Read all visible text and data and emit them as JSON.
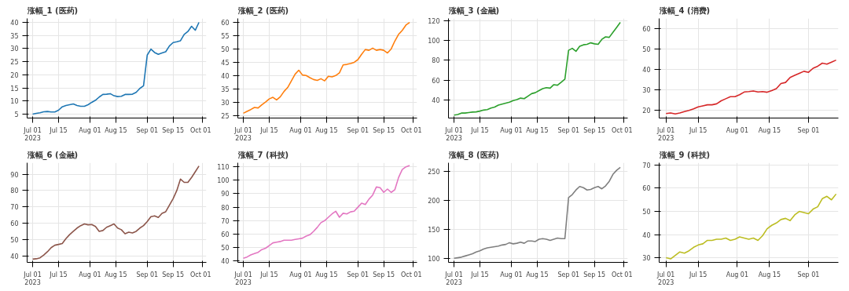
{
  "chart_data": [
    {
      "type": "line",
      "title": "涨幅_1 (医药)",
      "color": "#1f77b4",
      "grid": true,
      "x": [
        "2023-07-01",
        "2023-07-03",
        "2023-07-05",
        "2023-07-07",
        "2023-07-09",
        "2023-07-11",
        "2023-07-13",
        "2023-07-15",
        "2023-07-17",
        "2023-07-19",
        "2023-07-21",
        "2023-07-23",
        "2023-07-25",
        "2023-07-27",
        "2023-07-29",
        "2023-07-31",
        "2023-08-02",
        "2023-08-04",
        "2023-08-06",
        "2023-08-08",
        "2023-08-10",
        "2023-08-12",
        "2023-08-14",
        "2023-08-16",
        "2023-08-18",
        "2023-08-20",
        "2023-08-22",
        "2023-08-24",
        "2023-08-26",
        "2023-08-28",
        "2023-08-30",
        "2023-09-01",
        "2023-09-03",
        "2023-09-05",
        "2023-09-07",
        "2023-09-09",
        "2023-09-11",
        "2023-09-13",
        "2023-09-15",
        "2023-09-17",
        "2023-09-19",
        "2023-09-21",
        "2023-09-23",
        "2023-09-25",
        "2023-09-27",
        "2023-09-29"
      ],
      "values": [
        5.0,
        5.3,
        5.5,
        5.9,
        6.0,
        5.8,
        5.8,
        6.5,
        7.8,
        8.3,
        8.6,
        8.9,
        8.3,
        8.0,
        8.0,
        8.6,
        9.5,
        10.3,
        11.5,
        12.5,
        12.6,
        12.8,
        12.0,
        11.7,
        11.8,
        12.5,
        12.5,
        12.6,
        13.3,
        14.8,
        15.8,
        27.5,
        29.8,
        28.5,
        27.8,
        28.3,
        28.8,
        31,
        32.3,
        32.6,
        33,
        35.4,
        36.5,
        38.5,
        37,
        40
      ],
      "xlim": [
        "2023-06-28",
        "2023-10-03"
      ],
      "ylim": [
        3.5,
        41.5
      ],
      "yticks": [
        5,
        10,
        15,
        20,
        25,
        30,
        35,
        40
      ],
      "xticks": [
        {
          "value": "2023-07-01",
          "label": "Jul 01\n2023"
        },
        {
          "value": "2023-07-15",
          "label": "Jul 15"
        },
        {
          "value": "2023-08-01",
          "label": "Aug 01"
        },
        {
          "value": "2023-08-15",
          "label": "Aug 15"
        },
        {
          "value": "2023-09-01",
          "label": "Sep 01"
        },
        {
          "value": "2023-09-15",
          "label": "Sep 15"
        },
        {
          "value": "2023-10-01",
          "label": "Oct 01"
        }
      ]
    },
    {
      "type": "line",
      "title": "涨幅_2 (医药)",
      "color": "#ff7f0e",
      "grid": true,
      "x": [
        "2023-07-01",
        "2023-07-03",
        "2023-07-05",
        "2023-07-07",
        "2023-07-09",
        "2023-07-11",
        "2023-07-13",
        "2023-07-15",
        "2023-07-17",
        "2023-07-19",
        "2023-07-21",
        "2023-07-23",
        "2023-07-25",
        "2023-07-27",
        "2023-07-29",
        "2023-07-31",
        "2023-08-02",
        "2023-08-04",
        "2023-08-06",
        "2023-08-08",
        "2023-08-10",
        "2023-08-12",
        "2023-08-14",
        "2023-08-16",
        "2023-08-18",
        "2023-08-20",
        "2023-08-22",
        "2023-08-24",
        "2023-08-26",
        "2023-08-28",
        "2023-08-30",
        "2023-09-01",
        "2023-09-03",
        "2023-09-05",
        "2023-09-07",
        "2023-09-09",
        "2023-09-11",
        "2023-09-13",
        "2023-09-15",
        "2023-09-17",
        "2023-09-19",
        "2023-09-21",
        "2023-09-23",
        "2023-09-25",
        "2023-09-27",
        "2023-09-29"
      ],
      "values": [
        25.8,
        26.5,
        27.2,
        28,
        27.8,
        29,
        30,
        31.2,
        31.8,
        30.8,
        32,
        34,
        35.5,
        38,
        40.5,
        42,
        40.2,
        40,
        39.2,
        38.5,
        38.2,
        38.8,
        38,
        39.7,
        39.5,
        40,
        41,
        44,
        44.2,
        44.5,
        45,
        46,
        48,
        49.8,
        49.5,
        50.3,
        49.5,
        49.8,
        49.5,
        48.5,
        50,
        53,
        55.5,
        57,
        59,
        60
      ],
      "xlim": [
        "2023-06-28",
        "2023-10-03"
      ],
      "ylim": [
        24,
        61.5
      ],
      "yticks": [
        25,
        30,
        35,
        40,
        45,
        50,
        55,
        60
      ],
      "xticks": [
        {
          "value": "2023-07-01",
          "label": "Jul 01\n2023"
        },
        {
          "value": "2023-07-15",
          "label": "Jul 15"
        },
        {
          "value": "2023-08-01",
          "label": "Aug 01"
        },
        {
          "value": "2023-08-15",
          "label": "Aug 15"
        },
        {
          "value": "2023-09-01",
          "label": "Sep 01"
        },
        {
          "value": "2023-09-15",
          "label": "Sep 15"
        },
        {
          "value": "2023-10-01",
          "label": "Oct 01"
        }
      ]
    },
    {
      "type": "line",
      "title": "涨幅_3 (金融)",
      "color": "#2ca02c",
      "grid": true,
      "x": [
        "2023-07-01",
        "2023-07-03",
        "2023-07-05",
        "2023-07-07",
        "2023-07-09",
        "2023-07-11",
        "2023-07-13",
        "2023-07-15",
        "2023-07-17",
        "2023-07-19",
        "2023-07-21",
        "2023-07-23",
        "2023-07-25",
        "2023-07-27",
        "2023-07-29",
        "2023-07-31",
        "2023-08-02",
        "2023-08-04",
        "2023-08-06",
        "2023-08-08",
        "2023-08-10",
        "2023-08-12",
        "2023-08-14",
        "2023-08-16",
        "2023-08-18",
        "2023-08-20",
        "2023-08-22",
        "2023-08-24",
        "2023-08-26",
        "2023-08-28",
        "2023-08-30",
        "2023-09-01",
        "2023-09-03",
        "2023-09-05",
        "2023-09-07",
        "2023-09-09",
        "2023-09-11",
        "2023-09-13",
        "2023-09-15",
        "2023-09-17",
        "2023-09-19",
        "2023-09-21",
        "2023-09-23",
        "2023-09-25",
        "2023-09-27",
        "2023-09-29"
      ],
      "values": [
        25,
        25.5,
        27,
        27,
        27.5,
        28,
        28.2,
        29,
        30,
        30.5,
        32,
        33,
        35,
        36,
        37,
        38,
        39.5,
        40.5,
        42,
        41.5,
        44,
        46.5,
        47.5,
        49.5,
        51.5,
        52.5,
        52,
        55.5,
        55,
        58,
        61,
        90,
        92,
        89,
        94,
        95.5,
        96,
        97.5,
        96.5,
        96,
        101,
        103.5,
        103,
        108,
        113,
        118
      ],
      "xlim": [
        "2023-06-28",
        "2023-10-03"
      ],
      "ylim": [
        22,
        122
      ],
      "yticks": [
        40,
        60,
        80,
        100,
        120
      ],
      "xticks": [
        {
          "value": "2023-07-01",
          "label": "Jul 01\n2023"
        },
        {
          "value": "2023-07-15",
          "label": "Jul 15"
        },
        {
          "value": "2023-08-01",
          "label": "Aug 01"
        },
        {
          "value": "2023-08-15",
          "label": "Aug 15"
        },
        {
          "value": "2023-09-01",
          "label": "Sep 01"
        },
        {
          "value": "2023-09-15",
          "label": "Sep 15"
        },
        {
          "value": "2023-10-01",
          "label": "Oct 01"
        }
      ]
    },
    {
      "type": "line",
      "title": "涨幅_4 (消费)",
      "color": "#d62728",
      "grid": true,
      "x": [
        "2023-07-01",
        "2023-07-03",
        "2023-07-05",
        "2023-07-07",
        "2023-07-09",
        "2023-07-11",
        "2023-07-13",
        "2023-07-15",
        "2023-07-17",
        "2023-07-19",
        "2023-07-21",
        "2023-07-23",
        "2023-07-25",
        "2023-07-27",
        "2023-07-29",
        "2023-07-31",
        "2023-08-02",
        "2023-08-04",
        "2023-08-06",
        "2023-08-08",
        "2023-08-10",
        "2023-08-12",
        "2023-08-14",
        "2023-08-16",
        "2023-08-18",
        "2023-08-20",
        "2023-08-22",
        "2023-08-24",
        "2023-08-26",
        "2023-08-28",
        "2023-08-30",
        "2023-09-01",
        "2023-09-03",
        "2023-09-05",
        "2023-09-07",
        "2023-09-09",
        "2023-09-11",
        "2023-09-13"
      ],
      "values": [
        18.2,
        18.5,
        18.0,
        18.5,
        19.2,
        19.8,
        20.5,
        21.5,
        22.0,
        22.5,
        22.5,
        23,
        24.5,
        25.5,
        26.5,
        26.5,
        27.5,
        28.8,
        29.0,
        29.3,
        28.8,
        29.0,
        28.7,
        29.5,
        30.5,
        33.0,
        33.5,
        36.0,
        37.0,
        38.0,
        39.0,
        38.5,
        40.5,
        41.5,
        43.0,
        42.5,
        43.5,
        44.5
      ],
      "xlim": [
        "2023-06-28",
        "2023-09-14"
      ],
      "ylim": [
        16,
        65
      ],
      "yticks": [
        20,
        30,
        40,
        50,
        60
      ],
      "xticks": [
        {
          "value": "2023-07-01",
          "label": "Jul 01\n2023"
        },
        {
          "value": "2023-07-15",
          "label": "Jul 15"
        },
        {
          "value": "2023-08-01",
          "label": "Aug 01"
        },
        {
          "value": "2023-08-15",
          "label": "Aug 15"
        },
        {
          "value": "2023-09-01",
          "label": "Sep 01"
        }
      ]
    },
    {
      "type": "line",
      "title": "涨幅_6 (金融)",
      "color": "#8c564b",
      "grid": true,
      "x": [
        "2023-07-01",
        "2023-07-03",
        "2023-07-05",
        "2023-07-07",
        "2023-07-09",
        "2023-07-11",
        "2023-07-13",
        "2023-07-15",
        "2023-07-17",
        "2023-07-19",
        "2023-07-21",
        "2023-07-23",
        "2023-07-25",
        "2023-07-27",
        "2023-07-29",
        "2023-07-31",
        "2023-08-02",
        "2023-08-04",
        "2023-08-06",
        "2023-08-08",
        "2023-08-10",
        "2023-08-12",
        "2023-08-14",
        "2023-08-16",
        "2023-08-18",
        "2023-08-20",
        "2023-08-22",
        "2023-08-24",
        "2023-08-26",
        "2023-08-28",
        "2023-08-30",
        "2023-09-01",
        "2023-09-03",
        "2023-09-05",
        "2023-09-07",
        "2023-09-09",
        "2023-09-11",
        "2023-09-13",
        "2023-09-15",
        "2023-09-17",
        "2023-09-19",
        "2023-09-21",
        "2023-09-23",
        "2023-09-25",
        "2023-09-27",
        "2023-09-29"
      ],
      "values": [
        38,
        38.2,
        38.8,
        40.5,
        42.5,
        45,
        46.5,
        47,
        47.5,
        50.5,
        53,
        55,
        57,
        58.5,
        59.5,
        59,
        59.2,
        58,
        55,
        55.5,
        57.5,
        58.5,
        59.5,
        57,
        56,
        53.5,
        54.5,
        54,
        55,
        57,
        58.5,
        61,
        64,
        64.5,
        63.5,
        66,
        67,
        71,
        75,
        80,
        87,
        85,
        85,
        88,
        91.5,
        95
      ],
      "xlim": [
        "2023-06-28",
        "2023-10-03"
      ],
      "ylim": [
        36,
        97
      ],
      "yticks": [
        40,
        50,
        60,
        70,
        80,
        90
      ],
      "xticks": [
        {
          "value": "2023-07-01",
          "label": "Jul 01\n2023"
        },
        {
          "value": "2023-07-15",
          "label": "Jul 15"
        },
        {
          "value": "2023-08-01",
          "label": "Aug 01"
        },
        {
          "value": "2023-08-15",
          "label": "Aug 15"
        },
        {
          "value": "2023-09-01",
          "label": "Sep 01"
        },
        {
          "value": "2023-09-15",
          "label": "Sep 15"
        },
        {
          "value": "2023-10-01",
          "label": "Oct 01"
        }
      ]
    },
    {
      "type": "line",
      "title": "涨幅_7 (科技)",
      "color": "#e377c2",
      "grid": true,
      "x": [
        "2023-07-01",
        "2023-07-03",
        "2023-07-05",
        "2023-07-07",
        "2023-07-09",
        "2023-07-11",
        "2023-07-13",
        "2023-07-15",
        "2023-07-17",
        "2023-07-19",
        "2023-07-21",
        "2023-07-23",
        "2023-07-25",
        "2023-07-27",
        "2023-07-29",
        "2023-07-31",
        "2023-08-02",
        "2023-08-04",
        "2023-08-06",
        "2023-08-08",
        "2023-08-10",
        "2023-08-12",
        "2023-08-14",
        "2023-08-16",
        "2023-08-18",
        "2023-08-20",
        "2023-08-22",
        "2023-08-24",
        "2023-08-26",
        "2023-08-28",
        "2023-08-30",
        "2023-09-01",
        "2023-09-03",
        "2023-09-05",
        "2023-09-07",
        "2023-09-09",
        "2023-09-11",
        "2023-09-13",
        "2023-09-15",
        "2023-09-17",
        "2023-09-19",
        "2023-09-21",
        "2023-09-23",
        "2023-09-25",
        "2023-09-27",
        "2023-09-29"
      ],
      "values": [
        42,
        43,
        44.5,
        45.5,
        46.5,
        48.5,
        49.5,
        51.5,
        53.5,
        54,
        54.5,
        55.5,
        55.5,
        55.5,
        56,
        56.5,
        57,
        58.5,
        59.5,
        62,
        65,
        68.5,
        70,
        72.5,
        75,
        77,
        72.5,
        75.5,
        75,
        76.5,
        77,
        80,
        83,
        82,
        86,
        89,
        95,
        94.5,
        91,
        93.5,
        91,
        93,
        102,
        108,
        110,
        111
      ],
      "xlim": [
        "2023-06-28",
        "2023-10-03"
      ],
      "ylim": [
        39,
        113
      ],
      "yticks": [
        40,
        50,
        60,
        70,
        80,
        90,
        100,
        110
      ],
      "xticks": [
        {
          "value": "2023-07-01",
          "label": "Jul 01\n2023"
        },
        {
          "value": "2023-07-15",
          "label": "Jul 15"
        },
        {
          "value": "2023-08-01",
          "label": "Aug 01"
        },
        {
          "value": "2023-08-15",
          "label": "Aug 15"
        },
        {
          "value": "2023-09-01",
          "label": "Sep 01"
        },
        {
          "value": "2023-09-15",
          "label": "Sep 15"
        },
        {
          "value": "2023-10-01",
          "label": "Oct 01"
        }
      ]
    },
    {
      "type": "line",
      "title": "涨幅_8 (医药)",
      "color": "#7f7f7f",
      "grid": true,
      "x": [
        "2023-07-01",
        "2023-07-03",
        "2023-07-05",
        "2023-07-07",
        "2023-07-09",
        "2023-07-11",
        "2023-07-13",
        "2023-07-15",
        "2023-07-17",
        "2023-07-19",
        "2023-07-21",
        "2023-07-23",
        "2023-07-25",
        "2023-07-27",
        "2023-07-29",
        "2023-07-31",
        "2023-08-02",
        "2023-08-04",
        "2023-08-06",
        "2023-08-08",
        "2023-08-10",
        "2023-08-12",
        "2023-08-14",
        "2023-08-16",
        "2023-08-18",
        "2023-08-20",
        "2023-08-22",
        "2023-08-24",
        "2023-08-26",
        "2023-08-28",
        "2023-08-30",
        "2023-09-01",
        "2023-09-03",
        "2023-09-05",
        "2023-09-07",
        "2023-09-09",
        "2023-09-11",
        "2023-09-13",
        "2023-09-15",
        "2023-09-17",
        "2023-09-19",
        "2023-09-21",
        "2023-09-23",
        "2023-09-25",
        "2023-09-27",
        "2023-09-29"
      ],
      "values": [
        100,
        101,
        102,
        104,
        106,
        108,
        111,
        113,
        116,
        118,
        119,
        120,
        121,
        123,
        124,
        127,
        125,
        126,
        128,
        126,
        130,
        130,
        129,
        133,
        134,
        133,
        131,
        133,
        135,
        134,
        134,
        205,
        210,
        218,
        224,
        222,
        218,
        219,
        222,
        224,
        220,
        225,
        233,
        245,
        252,
        257
      ],
      "xlim": [
        "2023-06-28",
        "2023-10-03"
      ],
      "ylim": [
        93,
        265
      ],
      "yticks": [
        100,
        150,
        200,
        250
      ],
      "xticks": [
        {
          "value": "2023-07-01",
          "label": "Jul 01\n2023"
        },
        {
          "value": "2023-07-15",
          "label": "Jul 15"
        },
        {
          "value": "2023-08-01",
          "label": "Aug 01"
        },
        {
          "value": "2023-08-15",
          "label": "Aug 15"
        },
        {
          "value": "2023-09-01",
          "label": "Sep 01"
        },
        {
          "value": "2023-09-15",
          "label": "Sep 15"
        },
        {
          "value": "2023-10-01",
          "label": "Oct 01"
        }
      ]
    },
    {
      "type": "line",
      "title": "涨幅_9 (科技)",
      "color": "#bcbd22",
      "grid": true,
      "x": [
        "2023-07-01",
        "2023-07-03",
        "2023-07-05",
        "2023-07-07",
        "2023-07-09",
        "2023-07-11",
        "2023-07-13",
        "2023-07-15",
        "2023-07-17",
        "2023-07-19",
        "2023-07-21",
        "2023-07-23",
        "2023-07-25",
        "2023-07-27",
        "2023-07-29",
        "2023-07-31",
        "2023-08-02",
        "2023-08-04",
        "2023-08-06",
        "2023-08-08",
        "2023-08-10",
        "2023-08-12",
        "2023-08-14",
        "2023-08-16",
        "2023-08-18",
        "2023-08-20",
        "2023-08-22",
        "2023-08-24",
        "2023-08-26",
        "2023-08-28",
        "2023-08-30",
        "2023-09-01",
        "2023-09-03",
        "2023-09-05",
        "2023-09-07",
        "2023-09-09",
        "2023-09-11",
        "2023-09-13"
      ],
      "values": [
        30,
        29.5,
        31,
        32.5,
        32,
        33,
        34.5,
        35.5,
        36,
        37.5,
        37.5,
        38,
        38,
        38.5,
        37.5,
        38,
        39,
        38.5,
        38,
        38.5,
        37.5,
        39.5,
        42.5,
        44,
        45,
        46.5,
        47,
        46,
        48.5,
        50,
        49.5,
        49,
        51,
        52,
        55.5,
        56.5,
        55,
        57.5
      ],
      "xlim": [
        "2023-06-28",
        "2023-09-14"
      ],
      "ylim": [
        28,
        71
      ],
      "yticks": [
        30,
        40,
        50,
        60,
        70
      ],
      "xticks": [
        {
          "value": "2023-07-01",
          "label": "Jul 01\n2023"
        },
        {
          "value": "2023-07-15",
          "label": "Jul 15"
        },
        {
          "value": "2023-08-01",
          "label": "Aug 01"
        },
        {
          "value": "2023-08-15",
          "label": "Aug 15"
        },
        {
          "value": "2023-09-01",
          "label": "Sep 01"
        }
      ]
    }
  ]
}
